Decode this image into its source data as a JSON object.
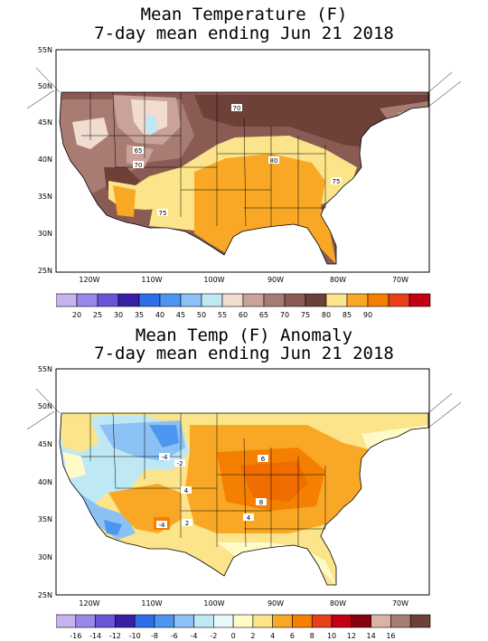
{
  "map1": {
    "title_line1": "Mean Temperature (F)",
    "title_line2": "7-day mean ending Jun 21 2018",
    "lat_labels": [
      "55N",
      "50N",
      "45N",
      "40N",
      "35N",
      "30N",
      "25N"
    ],
    "lon_labels": [
      "120W",
      "110W",
      "100W",
      "90W",
      "80W",
      "70W"
    ],
    "contour_labels": [
      "70",
      "65",
      "70",
      "75",
      "80",
      "75"
    ],
    "legend": {
      "labels": [
        "20",
        "25",
        "30",
        "35",
        "40",
        "45",
        "50",
        "55",
        "60",
        "65",
        "70",
        "75",
        "80",
        "85",
        "90"
      ],
      "colors": [
        "#c7b3f0",
        "#9a87ea",
        "#6a55d8",
        "#3a1fa6",
        "#2c6fe8",
        "#4a96f0",
        "#8cc1f5",
        "#bfe8f5",
        "#f2dcd0",
        "#c9a299",
        "#a87c73",
        "#8a5b52",
        "#6e4038",
        "#fbe48a",
        "#f9a825",
        "#f57f00",
        "#e8411a",
        "#c40014"
      ]
    }
  },
  "map2": {
    "title_line1": "Mean Temp (F) Anomaly",
    "title_line2": "7-day mean ending Jun 21 2018",
    "lat_labels": [
      "55N",
      "50N",
      "45N",
      "40N",
      "35N",
      "30N",
      "25N"
    ],
    "lon_labels": [
      "120W",
      "110W",
      "100W",
      "90W",
      "80W",
      "70W"
    ],
    "contour_labels": [
      "-4",
      "-2",
      "6",
      "4",
      "8",
      "4",
      "2",
      "-4"
    ],
    "legend": {
      "labels": [
        "-16",
        "-14",
        "-12",
        "-10",
        "-8",
        "-6",
        "-4",
        "-2",
        "0",
        "2",
        "4",
        "6",
        "8",
        "10",
        "12",
        "14",
        "16"
      ],
      "colors": [
        "#c7b3f0",
        "#9a87ea",
        "#6a55d8",
        "#3a1fa6",
        "#2c6fe8",
        "#4a96f0",
        "#8cc1f5",
        "#bfe8f5",
        "#e8f8fb",
        "#fffbc8",
        "#fbe48a",
        "#f9a825",
        "#f57f00",
        "#e8411a",
        "#c40014",
        "#8a0010",
        "#d9b3a3",
        "#a87c73",
        "#6e4038"
      ]
    }
  }
}
